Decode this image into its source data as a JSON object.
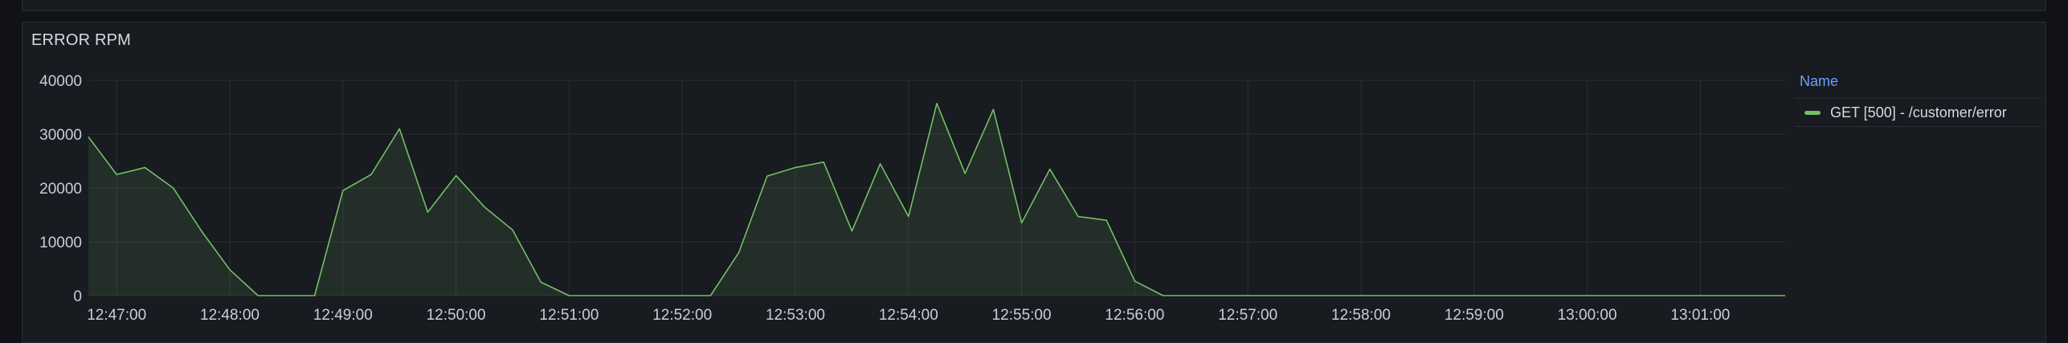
{
  "panel": {
    "title": "ERROR RPM"
  },
  "legend": {
    "header": "Name"
  },
  "colors": {
    "series": "#73bf69",
    "grid": "#2b2e35",
    "axis_text": "#ccccdc"
  },
  "chart_data": {
    "type": "area",
    "title": "ERROR RPM",
    "ylim": [
      0,
      40000
    ],
    "yticks": [
      0,
      10000,
      20000,
      30000,
      40000
    ],
    "xticks": [
      "12:47:00",
      "12:48:00",
      "12:49:00",
      "12:50:00",
      "12:51:00",
      "12:52:00",
      "12:53:00",
      "12:54:00",
      "12:55:00",
      "12:56:00",
      "12:57:00",
      "12:58:00",
      "12:59:00",
      "13:00:00",
      "13:01:00"
    ],
    "x_start": "12:46:45",
    "x_end": "13:01:45",
    "grid": true,
    "legend_position": "right",
    "series": [
      {
        "name": "GET [500] - /customer/error",
        "color": "#73bf69",
        "points": [
          [
            "12:46:45",
            29500
          ],
          [
            "12:47:00",
            22500
          ],
          [
            "12:47:15",
            23800
          ],
          [
            "12:47:30",
            20000
          ],
          [
            "12:47:45",
            12000
          ],
          [
            "12:48:00",
            4800
          ],
          [
            "12:48:15",
            0
          ],
          [
            "12:48:30",
            0
          ],
          [
            "12:48:45",
            0
          ],
          [
            "12:49:00",
            19500
          ],
          [
            "12:49:15",
            22500
          ],
          [
            "12:49:30",
            31000
          ],
          [
            "12:49:45",
            15500
          ],
          [
            "12:50:00",
            22300
          ],
          [
            "12:50:15",
            16500
          ],
          [
            "12:50:30",
            12200
          ],
          [
            "12:50:45",
            2500
          ],
          [
            "12:51:00",
            0
          ],
          [
            "12:51:15",
            0
          ],
          [
            "12:51:30",
            0
          ],
          [
            "12:51:45",
            0
          ],
          [
            "12:52:00",
            0
          ],
          [
            "12:52:15",
            0
          ],
          [
            "12:52:30",
            8000
          ],
          [
            "12:52:45",
            22200
          ],
          [
            "12:53:00",
            23800
          ],
          [
            "12:53:15",
            24800
          ],
          [
            "12:53:30",
            12000
          ],
          [
            "12:53:45",
            24500
          ],
          [
            "12:54:00",
            14700
          ],
          [
            "12:54:15",
            35700
          ],
          [
            "12:54:30",
            22700
          ],
          [
            "12:54:45",
            34600
          ],
          [
            "12:55:00",
            13500
          ],
          [
            "12:55:15",
            23500
          ],
          [
            "12:55:30",
            14700
          ],
          [
            "12:55:45",
            14000
          ],
          [
            "12:56:00",
            2700
          ],
          [
            "12:56:15",
            0
          ],
          [
            "12:56:30",
            0
          ],
          [
            "12:56:45",
            0
          ],
          [
            "12:57:00",
            0
          ],
          [
            "12:57:15",
            0
          ],
          [
            "12:57:30",
            0
          ],
          [
            "12:57:45",
            0
          ],
          [
            "12:58:00",
            0
          ],
          [
            "12:58:15",
            0
          ],
          [
            "12:58:30",
            0
          ],
          [
            "12:58:45",
            0
          ],
          [
            "12:59:00",
            0
          ],
          [
            "12:59:15",
            0
          ],
          [
            "12:59:30",
            0
          ],
          [
            "12:59:45",
            0
          ],
          [
            "13:00:00",
            0
          ],
          [
            "13:00:15",
            0
          ],
          [
            "13:00:30",
            0
          ],
          [
            "13:00:45",
            0
          ],
          [
            "13:01:00",
            0
          ],
          [
            "13:01:15",
            0
          ],
          [
            "13:01:30",
            0
          ],
          [
            "13:01:45",
            0
          ]
        ]
      }
    ]
  }
}
